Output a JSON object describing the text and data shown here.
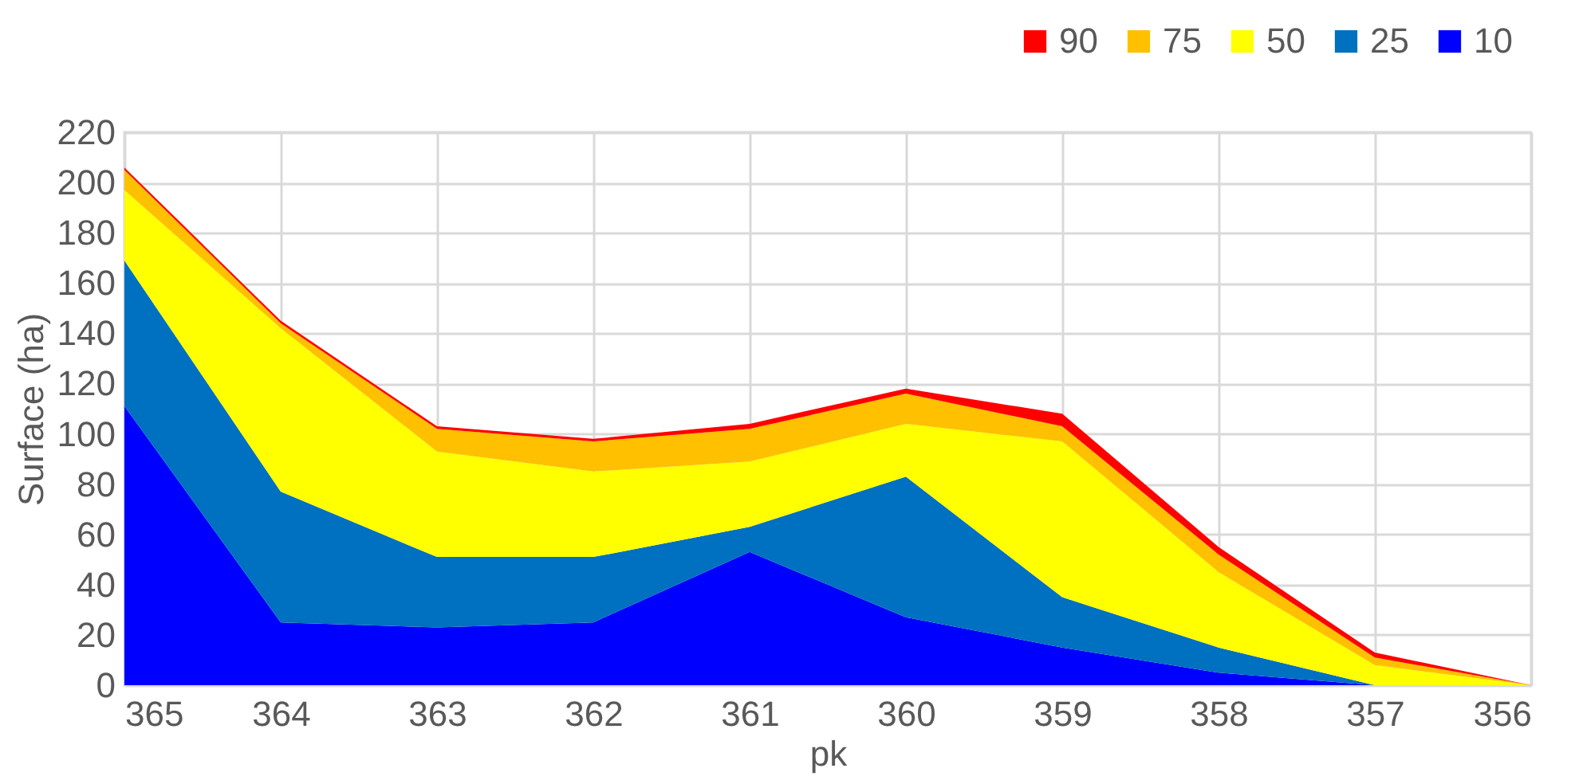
{
  "chart_data": {
    "type": "area",
    "stacked": true,
    "xlabel": "pk",
    "ylabel": "Surface (ha)",
    "categories": [
      "365",
      "364",
      "363",
      "362",
      "361",
      "360",
      "359",
      "358",
      "357",
      "356"
    ],
    "ylim": [
      0,
      220
    ],
    "yticks": [
      0,
      20,
      40,
      60,
      80,
      100,
      120,
      140,
      160,
      180,
      200,
      220
    ],
    "grid": true,
    "legend": "top right",
    "series": [
      {
        "name": "10",
        "color": "#0000ff",
        "values": [
          111,
          25,
          23,
          25,
          53,
          27,
          15,
          5,
          0,
          0
        ]
      },
      {
        "name": "25",
        "color": "#0070c0",
        "values": [
          58,
          52,
          28,
          26,
          10,
          56,
          20,
          10,
          0,
          0
        ]
      },
      {
        "name": "50",
        "color": "#ffff00",
        "values": [
          28,
          65,
          42,
          34,
          26,
          21,
          62,
          30,
          8,
          0
        ]
      },
      {
        "name": "75",
        "color": "#ffc000",
        "values": [
          8,
          2,
          9,
          12,
          13,
          12,
          6,
          7,
          3,
          0
        ]
      },
      {
        "name": "90",
        "color": "#ff0000",
        "values": [
          1,
          1,
          1,
          1,
          2,
          2,
          5,
          3,
          2,
          0
        ]
      }
    ]
  }
}
